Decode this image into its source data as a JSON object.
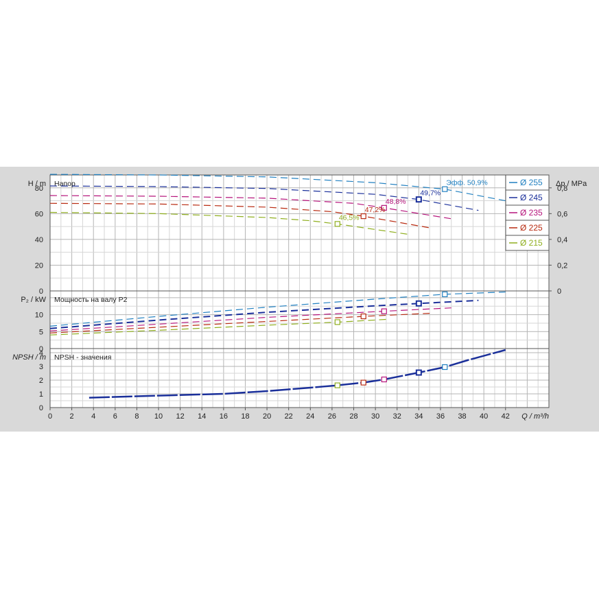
{
  "chart_data": {
    "type": "line",
    "xlabel": "Q / m³/h",
    "xlim": [
      0,
      46
    ],
    "xticks": [
      0,
      2,
      4,
      6,
      8,
      10,
      12,
      14,
      16,
      18,
      20,
      22,
      24,
      26,
      28,
      30,
      32,
      34,
      36,
      38,
      40,
      42
    ],
    "grid": true,
    "legend_position": "top-right",
    "colors": {
      "d255": "#1f7fc0",
      "d245": "#1a2f9a",
      "d235": "#b5127a",
      "d225": "#b82a10",
      "d215": "#8fae1e"
    },
    "series": [
      {
        "name": "Ø 255",
        "key": "d255"
      },
      {
        "name": "Ø 245",
        "key": "d245"
      },
      {
        "name": "Ø 235",
        "key": "d235"
      },
      {
        "name": "Ø 225",
        "key": "d225"
      },
      {
        "name": "Ø 215",
        "key": "d215"
      }
    ],
    "head": {
      "title": "Напор",
      "ylabel": "H / m",
      "ylabel_right": "Δp / MPa",
      "ylim": [
        0,
        90
      ],
      "yticks": [
        0,
        20,
        40,
        60,
        80
      ],
      "yticks_right": [
        "0",
        "0,2",
        "0,4",
        "0,6",
        "0,8"
      ],
      "curves": {
        "d255": [
          [
            0,
            90.5
          ],
          [
            10,
            90
          ],
          [
            20,
            88.5
          ],
          [
            30,
            84
          ],
          [
            36.4,
            79
          ],
          [
            42,
            70
          ]
        ],
        "d245": [
          [
            0,
            81.5
          ],
          [
            10,
            81
          ],
          [
            20,
            79.5
          ],
          [
            30,
            75
          ],
          [
            34,
            71
          ],
          [
            39.5,
            62.5
          ]
        ],
        "d235": [
          [
            0,
            74
          ],
          [
            10,
            73.5
          ],
          [
            20,
            72
          ],
          [
            28,
            68
          ],
          [
            30.8,
            64.5
          ],
          [
            37,
            56
          ]
        ],
        "d225": [
          [
            0,
            68
          ],
          [
            10,
            67.5
          ],
          [
            20,
            65
          ],
          [
            26,
            61.5
          ],
          [
            28.9,
            58
          ],
          [
            35,
            49
          ]
        ],
        "d215": [
          [
            0,
            61
          ],
          [
            10,
            60
          ],
          [
            20,
            57
          ],
          [
            24,
            54.5
          ],
          [
            26.5,
            52
          ],
          [
            33,
            44
          ]
        ]
      }
    },
    "power": {
      "title": "Мощность на валу P2",
      "ylabel": "P₂ / kW",
      "ylim": [
        0,
        17
      ],
      "yticks": [
        0,
        5,
        10
      ],
      "curves": {
        "d255": [
          [
            0,
            6.6
          ],
          [
            10,
            9.5
          ],
          [
            20,
            12.2
          ],
          [
            30,
            14.6
          ],
          [
            36.4,
            16
          ],
          [
            42,
            16.7
          ]
        ],
        "d245": [
          [
            0,
            5.9
          ],
          [
            10,
            8.4
          ],
          [
            20,
            10.7
          ],
          [
            30,
            12.6
          ],
          [
            34,
            13.3
          ],
          [
            39.5,
            14.2
          ]
        ],
        "d235": [
          [
            0,
            5.2
          ],
          [
            10,
            7.2
          ],
          [
            20,
            9.2
          ],
          [
            30.8,
            11
          ],
          [
            37,
            12
          ]
        ],
        "d225": [
          [
            0,
            4.6
          ],
          [
            10,
            6.3
          ],
          [
            20,
            8
          ],
          [
            28.9,
            9.5
          ],
          [
            35,
            10.4
          ]
        ],
        "d215": [
          [
            0,
            4
          ],
          [
            10,
            5.4
          ],
          [
            20,
            6.9
          ],
          [
            26.5,
            7.8
          ],
          [
            31,
            8.6
          ]
        ]
      }
    },
    "npsh": {
      "title": "NPSH - значения",
      "ylabel": "NPSH / m",
      "ylim": [
        0,
        4.3
      ],
      "yticks": [
        0,
        1,
        2,
        3,
        4
      ],
      "curve": [
        [
          3.6,
          0.72
        ],
        [
          10,
          0.87
        ],
        [
          16,
          1
        ],
        [
          20,
          1.2
        ],
        [
          24,
          1.45
        ],
        [
          26.5,
          1.62
        ],
        [
          28.9,
          1.82
        ],
        [
          30.8,
          2.05
        ],
        [
          34,
          2.55
        ],
        [
          36.4,
          2.95
        ],
        [
          38.5,
          3.45
        ],
        [
          42,
          4.2
        ]
      ],
      "markers": [
        {
          "x": 26.5,
          "y": 1.62,
          "key": "d215"
        },
        {
          "x": 28.9,
          "y": 1.82,
          "key": "d225"
        },
        {
          "x": 30.8,
          "y": 2.05,
          "key": "d235"
        },
        {
          "x": 34,
          "y": 2.55,
          "key": "d245"
        },
        {
          "x": 36.4,
          "y": 2.95,
          "key": "d255"
        }
      ]
    },
    "efficiency_points": [
      {
        "key": "d255",
        "q": 36.4,
        "h": 79,
        "p": 16,
        "label": "Эфф.  50,9%"
      },
      {
        "key": "d245",
        "q": 34,
        "h": 71,
        "p": 13.3,
        "label": "49,7%"
      },
      {
        "key": "d235",
        "q": 30.8,
        "h": 64.5,
        "p": 11,
        "label": "48,8%"
      },
      {
        "key": "d225",
        "q": 28.9,
        "h": 58,
        "p": 9.5,
        "label": "47,2%"
      },
      {
        "key": "d215",
        "q": 26.5,
        "h": 52,
        "p": 7.8,
        "label": "46,5%"
      }
    ]
  }
}
